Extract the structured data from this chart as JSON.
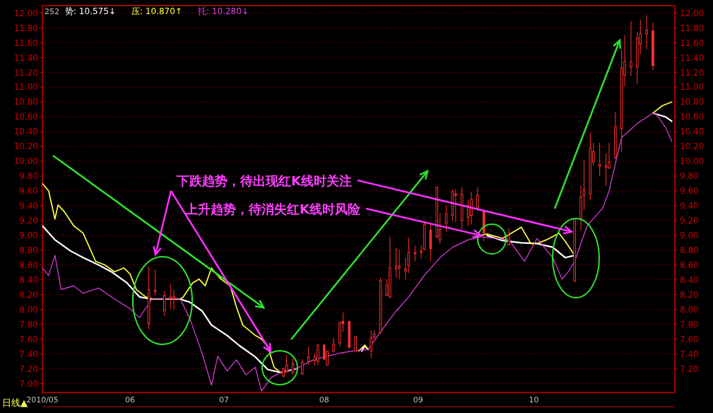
{
  "chart_data": {
    "type": "candlestick",
    "title": "252",
    "annotations": [
      {
        "text": "下跌趋势，待出现红K线时关注",
        "x": "2010-10-20",
        "y": 9.05
      },
      {
        "text": "上升趋势，待消失红K线时风险",
        "x": "2010-09-21",
        "y": 9.0
      },
      "日线▲"
    ],
    "color": "#ff3030",
    "x": [
      "2010-06-07",
      "2010-06-09",
      "2010-06-12",
      "2010-06-14",
      "2010-06-15",
      "2010-07-20",
      "2010-07-21",
      "2010-07-23",
      "2010-07-26",
      "2010-07-28",
      "2010-07-30",
      "2010-07-31",
      "2010-08-02",
      "2010-08-03",
      "2010-08-05",
      "2010-08-07",
      "2010-08-08",
      "2010-08-10",
      "2010-08-12",
      "2010-08-17",
      "2010-08-18",
      "2010-08-20",
      "2010-08-22",
      "2010-08-23",
      "2010-08-25",
      "2010-08-26",
      "2010-08-28",
      "2010-08-29",
      "2010-08-31",
      "2010-09-02",
      "2010-09-03",
      "2010-09-05",
      "2010-09-07",
      "2010-09-08",
      "2010-09-10",
      "2010-09-12",
      "2010-09-13",
      "2010-09-15",
      "2010-09-17",
      "2010-09-18",
      "2010-09-20",
      "2010-09-22",
      "2010-09-30",
      "2010-10-21",
      "2010-10-23",
      "2010-10-24",
      "2010-10-26",
      "2010-10-27",
      "2010-10-29",
      "2010-10-31",
      "2010-11-01",
      "2010-11-03",
      "2010-11-05",
      "2010-11-06",
      "2010-11-08",
      "2010-11-10",
      "2010-11-11",
      "2010-11-13",
      "2010-11-15"
    ],
    "ohlc": [
      [
        7.81,
        8.58,
        7.73,
        8.27
      ],
      [
        8.24,
        8.54,
        8.2,
        8.26
      ],
      [
        7.98,
        8.25,
        7.91,
        8.19
      ],
      [
        8.15,
        8.34,
        8.01,
        8.17
      ],
      [
        8.15,
        8.27,
        8.0,
        8.17
      ],
      [
        7.1,
        7.22,
        7.08,
        7.2
      ],
      [
        7.16,
        7.38,
        7.14,
        7.25
      ],
      [
        7.15,
        7.34,
        7.12,
        7.27
      ],
      [
        7.13,
        7.33,
        7.12,
        7.29
      ],
      [
        7.3,
        7.5,
        7.25,
        7.36
      ],
      [
        7.31,
        7.4,
        7.24,
        7.36
      ],
      [
        7.3,
        7.53,
        7.25,
        7.52
      ],
      [
        7.52,
        7.53,
        7.32,
        7.33
      ],
      [
        7.25,
        7.44,
        7.24,
        7.44
      ],
      [
        7.44,
        7.62,
        7.42,
        7.53
      ],
      [
        7.55,
        7.84,
        7.5,
        7.82
      ],
      [
        7.84,
        7.96,
        7.7,
        7.81
      ],
      [
        7.84,
        7.84,
        7.47,
        7.49
      ],
      [
        7.44,
        7.64,
        7.43,
        7.63
      ],
      [
        7.44,
        7.72,
        7.34,
        7.62
      ],
      [
        7.63,
        7.72,
        7.6,
        7.67
      ],
      [
        7.69,
        8.43,
        7.67,
        8.39
      ],
      [
        8.19,
        8.41,
        8.18,
        8.33
      ],
      [
        8.17,
        8.98,
        8.15,
        8.57
      ],
      [
        8.55,
        8.83,
        8.43,
        8.59
      ],
      [
        8.56,
        8.81,
        8.41,
        8.58
      ],
      [
        8.52,
        8.7,
        8.41,
        8.55
      ],
      [
        8.59,
        8.97,
        8.49,
        8.77
      ],
      [
        8.75,
        8.86,
        8.65,
        8.77
      ],
      [
        8.77,
        8.87,
        8.68,
        8.79
      ],
      [
        8.81,
        9.18,
        8.8,
        9.15
      ],
      [
        9.07,
        9.16,
        8.65,
        8.82
      ],
      [
        8.98,
        9.66,
        8.96,
        9.65
      ],
      [
        8.94,
        9.3,
        8.89,
        9.08
      ],
      [
        9.16,
        9.4,
        9.05,
        9.29
      ],
      [
        9.27,
        9.62,
        9.2,
        9.59
      ],
      [
        9.56,
        9.62,
        9.18,
        9.54
      ],
      [
        9.2,
        9.65,
        9.08,
        9.56
      ],
      [
        9.24,
        9.48,
        9.13,
        9.4
      ],
      [
        9.27,
        9.59,
        9.15,
        9.49
      ],
      [
        9.38,
        9.65,
        9.33,
        9.54
      ],
      [
        9.32,
        9.33,
        8.92,
        9.03
      ],
      [
        8.87,
        9.1,
        8.87,
        9.0
      ],
      [
        8.38,
        9.22,
        8.38,
        9.22
      ],
      [
        9.23,
        9.67,
        9.06,
        9.52
      ],
      [
        9.54,
        10.02,
        9.34,
        9.62
      ],
      [
        9.56,
        10.39,
        9.48,
        10.18
      ],
      [
        9.99,
        10.25,
        9.94,
        10.13
      ],
      [
        9.93,
        10.25,
        9.8,
        9.96
      ],
      [
        9.92,
        10.11,
        9.67,
        9.94
      ],
      [
        9.91,
        10.25,
        9.9,
        9.99
      ],
      [
        10.05,
        10.67,
        10.03,
        10.47
      ],
      [
        10.44,
        11.51,
        10.13,
        11.26
      ],
      [
        11.16,
        11.7,
        11.01,
        11.35
      ],
      [
        11.27,
        11.89,
        11.15,
        11.34
      ],
      [
        11.27,
        11.75,
        11.04,
        11.66
      ],
      [
        11.58,
        11.91,
        11.45,
        11.72
      ],
      [
        11.72,
        11.97,
        11.51,
        11.77
      ],
      [
        11.76,
        11.87,
        11.23,
        11.29
      ]
    ],
    "series": [
      {
        "type": "line",
        "name": "势: 10.575↓",
        "color": "#ffffff",
        "x": [
          "2010-05-04",
          "2010-05-08",
          "2010-05-13",
          "2010-05-17",
          "2010-05-22",
          "2010-05-26",
          "2010-05-31",
          "2010-06-04",
          "2010-06-08",
          "2010-06-17",
          "2010-06-20",
          "2010-06-24",
          "2010-06-27",
          "2010-07-02",
          "2010-07-06",
          "2010-07-11",
          "2010-07-15",
          "2010-07-19",
          "2010-07-24",
          "2010-07-25",
          "2010-08-14",
          "2010-08-15",
          "2010-08-16",
          "2010-08-17",
          "2010-09-23",
          "2010-09-28",
          "2010-10-04",
          "2010-10-09",
          "2010-10-14",
          "2010-10-18",
          "2010-10-21",
          "2010-10-22",
          "2010-11-15",
          "2010-11-19",
          "2010-11-21"
        ],
        "values": [
          9.13,
          8.94,
          8.79,
          8.7,
          8.6,
          8.51,
          8.36,
          8.17,
          8.14,
          8.14,
          8.1,
          7.98,
          7.79,
          7.65,
          7.51,
          7.36,
          7.19,
          7.15,
          7.2,
          null,
          7.44,
          7.51,
          7.46,
          null,
          9.0,
          8.93,
          8.9,
          8.89,
          8.84,
          8.7,
          8.73,
          null,
          10.65,
          10.6,
          10.54
        ]
      },
      {
        "type": "line",
        "name": "压: 10.870↑",
        "color": "#ffff40",
        "x": [
          "2010-05-04",
          "2010-05-06",
          "2010-05-08",
          "2010-05-09",
          "2010-05-11",
          "2010-05-14",
          "2010-05-17",
          "2010-05-21",
          "2010-05-24",
          "2010-05-27",
          "2010-05-30",
          "2010-06-01",
          "2010-06-03",
          "2010-06-06",
          "2010-06-08",
          "2010-06-17",
          "2010-06-18",
          "2010-06-21",
          "2010-06-23",
          "2010-06-25",
          "2010-06-27",
          "2010-06-30",
          "2010-07-03",
          "2010-07-05",
          "2010-07-07",
          "2010-07-11",
          "2010-07-13",
          "2010-07-15",
          "2010-07-17",
          "2010-07-19",
          "2010-07-25",
          "2010-08-13",
          "2010-08-15",
          "2010-08-16",
          "2010-08-17",
          "2010-09-21",
          "2010-09-23",
          "2010-09-28",
          "2010-10-04",
          "2010-10-07",
          "2010-10-09",
          "2010-10-12",
          "2010-10-16",
          "2010-10-18",
          "2010-10-21",
          "2010-10-22",
          "2010-11-15",
          "2010-11-18",
          "2010-11-21"
        ],
        "values": [
          9.7,
          9.6,
          9.22,
          9.41,
          9.32,
          9.13,
          9.03,
          8.65,
          8.6,
          8.51,
          8.56,
          8.48,
          8.27,
          8.17,
          8.14,
          8.14,
          8.17,
          8.36,
          8.41,
          8.32,
          8.56,
          8.41,
          8.32,
          8.03,
          7.79,
          7.65,
          7.6,
          7.5,
          7.22,
          7.15,
          null,
          7.44,
          7.52,
          7.46,
          null,
          9.0,
          9.02,
          8.96,
          9.11,
          8.89,
          8.89,
          8.94,
          9.03,
          8.92,
          8.73,
          null,
          10.65,
          10.75,
          10.8
        ]
      },
      {
        "type": "line",
        "name": "托: 10.280↓",
        "color": "#e040e0",
        "x": [
          "2010-05-04",
          "2010-05-06",
          "2010-05-08",
          "2010-05-10",
          "2010-05-14",
          "2010-05-17",
          "2010-05-22",
          "2010-05-26",
          "2010-06-01",
          "2010-06-04",
          "2010-06-08",
          "2010-06-17",
          "2010-06-20",
          "2010-06-24",
          "2010-06-27",
          "2010-06-29",
          "2010-07-02",
          "2010-07-05",
          "2010-07-08",
          "2010-07-11",
          "2010-07-13",
          "2010-07-16",
          "2010-07-20",
          "2010-07-24",
          "2010-07-29",
          "2010-08-02",
          "2010-08-07",
          "2010-08-11",
          "2010-08-16",
          "2010-08-20",
          "2010-08-25",
          "2010-08-29",
          "2010-09-03",
          "2010-09-08",
          "2010-09-12",
          "2010-09-17",
          "2010-09-21",
          "2010-09-26",
          "2010-09-30",
          "2010-10-05",
          "2010-10-09",
          "2010-10-14",
          "2010-10-17",
          "2010-10-19",
          "2010-10-21",
          "2010-10-25",
          "2010-10-30",
          "2010-11-01",
          "2010-11-04",
          "2010-11-05",
          "2010-11-10",
          "2010-11-15",
          "2010-11-16",
          "2010-11-19",
          "2010-11-21"
        ],
        "values": [
          8.56,
          8.46,
          8.73,
          8.27,
          8.32,
          8.22,
          8.29,
          8.17,
          8.01,
          7.89,
          8.14,
          8.14,
          7.89,
          7.41,
          6.98,
          7.37,
          7.17,
          7.32,
          7.12,
          7.22,
          6.9,
          7.08,
          7.17,
          7.2,
          7.31,
          7.36,
          7.41,
          7.44,
          7.46,
          7.7,
          7.98,
          8.17,
          8.46,
          8.7,
          8.84,
          8.94,
          8.98,
          8.96,
          8.94,
          8.65,
          8.96,
          8.7,
          8.41,
          8.51,
          8.65,
          9.13,
          9.37,
          9.6,
          10.15,
          10.32,
          10.51,
          10.65,
          10.64,
          10.46,
          10.27
        ]
      }
    ],
    "xlim": [
      "2010-05-04",
      "2010-11-22"
    ],
    "xticks": [
      {
        "value": "2010-05-04",
        "label": "2010/05"
      },
      {
        "value": "2010-06-01",
        "label": "06"
      },
      {
        "value": "2010-07-01",
        "label": "07"
      },
      {
        "value": "2010-08-02",
        "label": "08"
      },
      {
        "value": "2010-09-01",
        "label": "09"
      },
      {
        "value": "2010-10-08",
        "label": "10"
      }
    ],
    "ylim": [
      6.88,
      12.1
    ],
    "yticks": [
      {
        "value": 7,
        "label": "7.00"
      },
      {
        "value": 7.2,
        "label": "7.20"
      },
      {
        "value": 7.4,
        "label": "7.40"
      },
      {
        "value": 7.6,
        "label": "7.60"
      },
      {
        "value": 7.8,
        "label": "7.80"
      },
      {
        "value": 8,
        "label": "8.00"
      },
      {
        "value": 8.2,
        "label": "8.20"
      },
      {
        "value": 8.4,
        "label": "8.40"
      },
      {
        "value": 8.6,
        "label": "8.60"
      },
      {
        "value": 8.8,
        "label": "8.80"
      },
      {
        "value": 9,
        "label": "9.00"
      },
      {
        "value": 9.2,
        "label": "9.20"
      },
      {
        "value": 9.4,
        "label": "9.40"
      },
      {
        "value": 9.6,
        "label": "9.60"
      },
      {
        "value": 9.8,
        "label": "9.80"
      },
      {
        "value": 10,
        "label": "10.00"
      },
      {
        "value": 10.2,
        "label": "10.20"
      },
      {
        "value": 10.4,
        "label": "10.40"
      },
      {
        "value": 10.6,
        "label": "10.60"
      },
      {
        "value": 10.8,
        "label": "10.80"
      },
      {
        "value": 11,
        "label": "11.00"
      },
      {
        "value": 11.2,
        "label": "11.20"
      },
      {
        "value": 11.4,
        "label": "11.40"
      },
      {
        "value": 11.6,
        "label": "11.60"
      },
      {
        "value": 11.8,
        "label": "11.80"
      },
      {
        "value": 12,
        "label": "12.00"
      }
    ],
    "y2lim": [
      6.88,
      12.1
    ],
    "y2ticks": [
      {
        "value": 7.2,
        "label": "7.20"
      },
      {
        "value": 7.4,
        "label": "7.40"
      },
      {
        "value": 7.6,
        "label": "7.60"
      },
      {
        "value": 7.8,
        "label": "7.80"
      },
      {
        "value": 8,
        "label": "8.00"
      },
      {
        "value": 8.2,
        "label": "8.20"
      },
      {
        "value": 8.4,
        "label": "8.40"
      },
      {
        "value": 8.6,
        "label": "8.60"
      },
      {
        "value": 8.8,
        "label": "8.80"
      },
      {
        "value": 9,
        "label": "9.00"
      },
      {
        "value": 9.2,
        "label": "9.20"
      },
      {
        "value": 9.4,
        "label": "9.40"
      },
      {
        "value": 9.6,
        "label": "9.60"
      },
      {
        "value": 9.8,
        "label": "9.80"
      },
      {
        "value": 10,
        "label": "10.00"
      },
      {
        "value": 10.2,
        "label": "10.20"
      },
      {
        "value": 10.4,
        "label": "10.40"
      },
      {
        "value": 10.6,
        "label": "10.60"
      },
      {
        "value": 10.8,
        "label": "10.80"
      },
      {
        "value": 11,
        "label": "11.00"
      },
      {
        "value": 11.2,
        "label": "11.20"
      },
      {
        "value": 11.4,
        "label": "11.40"
      },
      {
        "value": 11.6,
        "label": "11.60"
      },
      {
        "value": 11.8,
        "label": "11.80"
      },
      {
        "value": 12,
        "label": "12.00"
      }
    ],
    "grid": "y",
    "legend": "top left"
  }
}
